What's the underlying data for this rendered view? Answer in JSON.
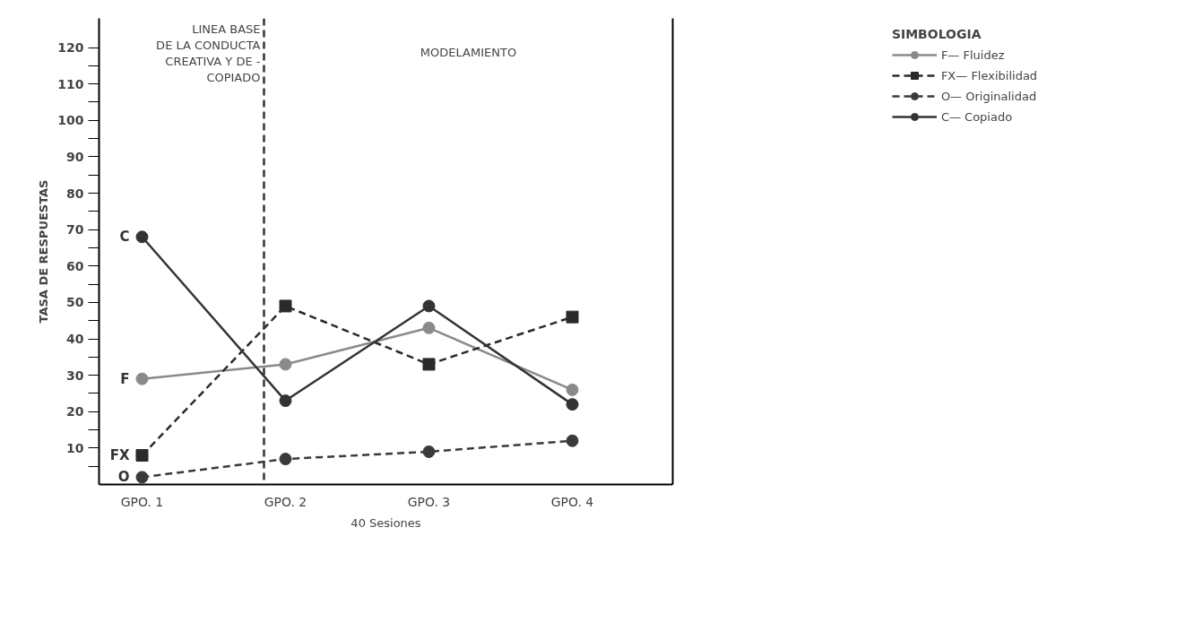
{
  "chart_data": {
    "type": "line",
    "xlabel": "40 Sesiones",
    "ylabel": "TASA DE RESPUESTAS",
    "legend_title": "SIMBOLOGIA",
    "x": [
      1,
      2,
      3,
      4
    ],
    "xlim": [
      0.7,
      4.7
    ],
    "xticks": [
      {
        "value": 1,
        "label": "GPO. 1"
      },
      {
        "value": 2,
        "label": "GPO. 2"
      },
      {
        "value": 3,
        "label": "GPO. 3"
      },
      {
        "value": 4,
        "label": "GPO. 4"
      }
    ],
    "series": [
      {
        "name": "F— Fluidez",
        "color": "#8a8a8a",
        "values": [
          29,
          33,
          43,
          26
        ],
        "marker": "circle",
        "line_style": "solid"
      },
      {
        "name": "FX— Flexibilidad",
        "color": "#2a2a2a",
        "values": [
          8,
          49,
          33,
          46
        ],
        "marker": "square",
        "line_style": "dashed"
      },
      {
        "name": "O— Originalidad",
        "color": "#3a3a3a",
        "values": [
          2,
          7,
          9,
          12
        ],
        "marker": "circle",
        "line_style": "dashed"
      },
      {
        "name": "C— Copiado",
        "color": "#333333",
        "values": [
          68,
          23,
          49,
          22
        ],
        "marker": "circle",
        "line_style": "solid"
      }
    ],
    "ylim": [
      0,
      128
    ],
    "yticks": [
      {
        "value": 5,
        "label": null
      },
      10,
      {
        "value": 15,
        "label": null
      },
      20,
      {
        "value": 25,
        "label": null
      },
      30,
      {
        "value": 35,
        "label": null
      },
      40,
      {
        "value": 45,
        "label": null
      },
      50,
      {
        "value": 55,
        "label": null
      },
      60,
      {
        "value": 65,
        "label": null
      },
      70,
      {
        "value": 75,
        "label": null
      },
      80,
      {
        "value": 85,
        "label": null
      },
      90,
      {
        "value": 95,
        "label": null
      },
      100,
      {
        "value": 105,
        "label": null
      },
      110,
      {
        "value": 115,
        "label": null
      },
      120
    ],
    "ref_lines": [
      {
        "axis": "x",
        "value": 1.85,
        "label": "LINEA BASE\nDE LA CONDUCTA\nCREATIVA Y DE -\nCOPIADO",
        "color": "#333333",
        "line_style": "dashed"
      }
    ],
    "annotations": [
      "MODELAMIENTO",
      "F",
      "FX",
      "O",
      "C"
    ],
    "grid": false,
    "legend": "top right"
  }
}
